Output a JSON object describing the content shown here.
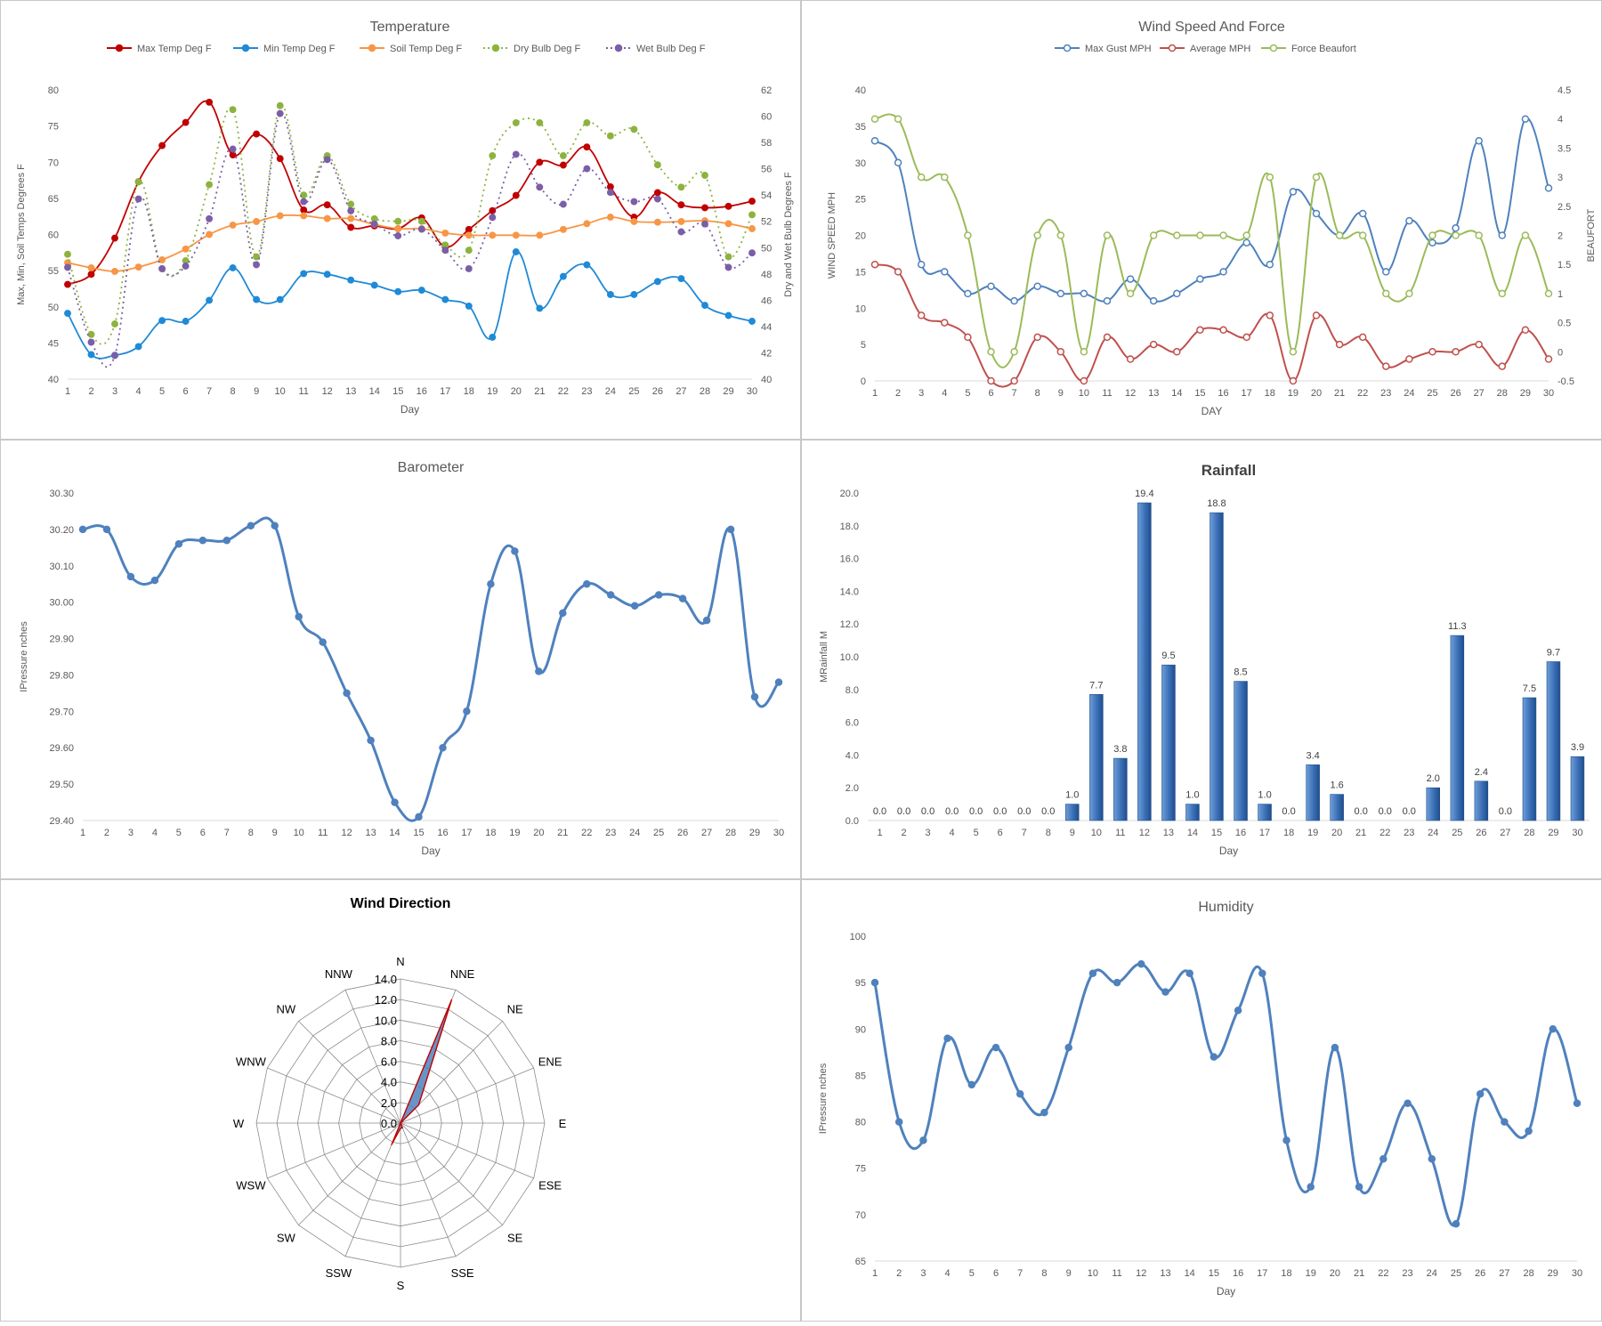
{
  "colors": {
    "max_temp": "#c00000",
    "min_temp": "#1f8ad6",
    "soil_temp": "#f79646",
    "dry_bulb": "#8db33f",
    "wet_bulb": "#7b5ea7",
    "gust": "#4f81bd",
    "average": "#c0504d",
    "beaufort": "#9bbb59",
    "line_blue": "#4f81bd",
    "bar": "#3b6fb6",
    "radar_fill": "#4f81bd",
    "radar_stroke": "#c00000",
    "grid": "#d9d9d9",
    "text": "#595959"
  },
  "chart_data": [
    {
      "id": "temperature",
      "type": "line",
      "title": "Temperature",
      "xlabel": "Day",
      "ylabel": "Max, Min, Soil Temps Degrees F",
      "y2label": "Dry and Wet Bulb Degrees F",
      "ylim": [
        40,
        80
      ],
      "yticks": [
        40,
        45,
        50,
        55,
        60,
        65,
        70,
        75,
        80
      ],
      "y2lim": [
        40,
        62
      ],
      "y2ticks": [
        40,
        42,
        44,
        46,
        48,
        50,
        52,
        54,
        56,
        58,
        60,
        62
      ],
      "x": [
        1,
        2,
        3,
        4,
        5,
        6,
        7,
        8,
        9,
        10,
        11,
        12,
        13,
        14,
        15,
        16,
        17,
        18,
        19,
        20,
        21,
        22,
        23,
        24,
        25,
        26,
        27,
        28,
        29,
        30
      ],
      "grid": false,
      "legend": "top",
      "series": [
        {
          "name": "Max Temp Deg F",
          "axis": "left",
          "style": "solid",
          "color_key": "max_temp",
          "values": [
            53.1,
            54.5,
            59.5,
            67.3,
            72.3,
            75.5,
            78.3,
            71.0,
            73.9,
            70.5,
            63.4,
            64.1,
            61.0,
            61.2,
            60.8,
            62.3,
            58.3,
            60.7,
            63.3,
            65.4,
            70.0,
            69.6,
            72.1,
            66.6,
            62.4,
            65.8,
            64.1,
            63.7,
            63.9,
            64.6
          ]
        },
        {
          "name": "Min Temp Deg F",
          "axis": "left",
          "style": "solid",
          "color_key": "min_temp",
          "values": [
            49.1,
            43.4,
            43.3,
            44.5,
            48.1,
            48.0,
            50.9,
            55.4,
            51.0,
            51.0,
            54.6,
            54.5,
            53.7,
            53.0,
            52.1,
            52.3,
            51.0,
            50.1,
            45.8,
            57.6,
            49.8,
            54.2,
            55.8,
            51.7,
            51.7,
            53.5,
            53.9,
            50.2,
            48.8,
            48.0
          ]
        },
        {
          "name": "Soil Temp Deg F",
          "axis": "left",
          "style": "solid",
          "color_key": "soil_temp",
          "values": [
            56.1,
            55.4,
            54.9,
            55.5,
            56.5,
            58.0,
            60.0,
            61.3,
            61.8,
            62.6,
            62.6,
            62.2,
            62.2,
            61.4,
            60.8,
            60.8,
            60.2,
            59.9,
            59.9,
            59.9,
            59.9,
            60.7,
            61.5,
            62.4,
            61.8,
            61.7,
            61.8,
            61.9,
            61.5,
            60.8
          ]
        },
        {
          "name": "Dry Bulb Deg F",
          "axis": "right",
          "style": "dotted",
          "color_key": "dry_bulb",
          "values": [
            49.5,
            43.4,
            44.2,
            55.0,
            48.4,
            49.0,
            54.8,
            60.5,
            49.3,
            60.8,
            54.0,
            57.0,
            53.3,
            52.2,
            52.0,
            52.0,
            50.2,
            49.8,
            57.0,
            59.5,
            59.5,
            57.0,
            59.5,
            58.5,
            59.0,
            56.3,
            54.6,
            55.5,
            49.3,
            52.5
          ]
        },
        {
          "name": "Wet Bulb Deg F",
          "axis": "right",
          "style": "dotted",
          "color_key": "wet_bulb",
          "values": [
            48.5,
            42.8,
            41.8,
            53.7,
            48.4,
            48.6,
            52.2,
            57.5,
            48.7,
            60.2,
            53.5,
            56.7,
            52.8,
            51.8,
            50.9,
            51.4,
            49.8,
            48.4,
            52.3,
            57.1,
            54.6,
            53.3,
            56.0,
            54.2,
            53.5,
            53.7,
            51.2,
            51.8,
            48.5,
            49.6
          ]
        }
      ]
    },
    {
      "id": "wind_speed",
      "type": "line",
      "title": "Wind Speed And Force",
      "xlabel": "DAY",
      "ylabel": "WIND SPEED MPH",
      "y2label": "BEAUFORT",
      "ylim": [
        0,
        40
      ],
      "yticks": [
        0,
        5,
        10,
        15,
        20,
        25,
        30,
        35,
        40
      ],
      "y2lim": [
        -0.5,
        4.5
      ],
      "y2ticks": [
        "-0.5",
        "0",
        "0.5",
        "1",
        "1.5",
        "2",
        "2.5",
        "3",
        "3.5",
        "4",
        "4.5"
      ],
      "x": [
        1,
        2,
        3,
        4,
        5,
        6,
        7,
        8,
        9,
        10,
        11,
        12,
        13,
        14,
        15,
        16,
        17,
        18,
        19,
        20,
        21,
        22,
        23,
        24,
        25,
        26,
        27,
        28,
        29,
        30
      ],
      "grid": false,
      "legend": "top",
      "series": [
        {
          "name": "Max Gust MPH",
          "axis": "left",
          "color_key": "gust",
          "values": [
            33,
            30,
            16,
            15,
            12,
            13,
            11,
            13,
            12,
            12,
            11,
            14,
            11,
            12,
            14,
            15,
            19,
            16,
            26,
            23,
            20,
            23,
            15,
            22,
            19,
            21,
            33,
            20,
            36,
            26.5
          ]
        },
        {
          "name": "Average MPH",
          "axis": "left",
          "color_key": "average",
          "values": [
            16,
            15,
            9,
            8,
            6,
            0,
            0,
            6,
            4,
            0,
            6,
            3,
            5,
            4,
            7,
            7,
            6,
            9,
            0,
            9,
            5,
            6,
            2,
            3,
            4,
            4,
            5,
            2,
            7,
            3
          ]
        },
        {
          "name": "Force Beaufort",
          "axis": "right",
          "color_key": "beaufort",
          "values": [
            4,
            4,
            3,
            3,
            2,
            0,
            0,
            2,
            2,
            0,
            2,
            1,
            2,
            2,
            2,
            2,
            2,
            3,
            0,
            3,
            2,
            2,
            1,
            1,
            2,
            2,
            2,
            1,
            2,
            1
          ]
        }
      ]
    },
    {
      "id": "barometer",
      "type": "line",
      "title": "Barometer",
      "xlabel": "Day",
      "ylabel": "IPressure nches",
      "ylim": [
        29.4,
        30.3
      ],
      "yticks": [
        "29.40",
        "29.50",
        "29.60",
        "29.70",
        "29.80",
        "29.90",
        "30.00",
        "30.10",
        "30.20",
        "30.30"
      ],
      "x": [
        1,
        2,
        3,
        4,
        5,
        6,
        7,
        8,
        9,
        10,
        11,
        12,
        13,
        14,
        15,
        16,
        17,
        18,
        19,
        20,
        21,
        22,
        23,
        24,
        25,
        26,
        27,
        28,
        29,
        30
      ],
      "grid": false,
      "series": [
        {
          "name": "",
          "color_key": "line_blue",
          "values": [
            30.2,
            30.2,
            30.07,
            30.06,
            30.16,
            30.17,
            30.17,
            30.21,
            30.21,
            29.96,
            29.89,
            29.75,
            29.62,
            29.45,
            29.41,
            29.6,
            29.7,
            30.05,
            30.14,
            29.81,
            29.97,
            30.05,
            30.02,
            29.99,
            30.02,
            30.01,
            29.95,
            30.2,
            29.74,
            29.78
          ]
        }
      ]
    },
    {
      "id": "rainfall",
      "type": "bar",
      "title": "Rainfall",
      "xlabel": "Day",
      "ylabel": "MRainfall M",
      "ylim": [
        0,
        20
      ],
      "yticks": [
        "0.0",
        "2.0",
        "4.0",
        "6.0",
        "8.0",
        "10.0",
        "12.0",
        "14.0",
        "16.0",
        "18.0",
        "20.0"
      ],
      "categories": [
        "1",
        "2",
        "3",
        "4",
        "5",
        "6",
        "7",
        "8",
        "9",
        "10",
        "11",
        "12",
        "13",
        "14",
        "15",
        "16",
        "17",
        "18",
        "19",
        "20",
        "21",
        "22",
        "23",
        "24",
        "25",
        "26",
        "27",
        "28",
        "29",
        "30"
      ],
      "values": [
        0.0,
        0.0,
        0.0,
        0.0,
        0.0,
        0.0,
        0.0,
        0.0,
        1.0,
        7.7,
        3.8,
        19.4,
        9.5,
        1.0,
        18.8,
        8.5,
        1.0,
        0.0,
        3.4,
        1.6,
        0.0,
        0.0,
        0.0,
        2.0,
        11.3,
        2.4,
        0.0,
        7.5,
        9.7,
        3.9
      ],
      "labels": [
        "0.0",
        "0.0",
        "0.0",
        "0.0",
        "0.0",
        "0.0",
        "0.0",
        "0.0",
        "1.0",
        "7.7",
        "3.8",
        "19.4",
        "9.5",
        "1.0",
        "18.8",
        "8.5",
        "1.0",
        "0.0",
        "3.4",
        "1.6",
        "0.0",
        "0.0",
        "0.0",
        "2.0",
        "11.3",
        "2.4",
        "0.0",
        "7.5",
        "9.7",
        "3.9"
      ],
      "grid": false
    },
    {
      "id": "wind_direction",
      "type": "radar",
      "title": "Wind Direction",
      "directions": [
        "N",
        "NNE",
        "NE",
        "ENE",
        "E",
        "ESE",
        "SE",
        "SSE",
        "S",
        "SSW",
        "SW",
        "WSW",
        "W",
        "WNW",
        "NW",
        "NNW"
      ],
      "values": [
        0,
        13.0,
        2.5,
        0,
        0,
        0,
        0,
        0.5,
        0.5,
        2.3,
        0,
        0,
        0,
        0,
        0,
        0
      ],
      "rlim": [
        0,
        14
      ],
      "rticks": [
        "0.0",
        "2.0",
        "4.0",
        "6.0",
        "8.0",
        "10.0",
        "12.0",
        "14.0"
      ]
    },
    {
      "id": "humidity",
      "type": "line",
      "title": "Humidity",
      "xlabel": "Day",
      "ylabel": "IPressure nches",
      "ylim": [
        65,
        100
      ],
      "yticks": [
        65,
        70,
        75,
        80,
        85,
        90,
        95,
        100
      ],
      "x": [
        1,
        2,
        3,
        4,
        5,
        6,
        7,
        8,
        9,
        10,
        11,
        12,
        13,
        14,
        15,
        16,
        17,
        18,
        19,
        20,
        21,
        22,
        23,
        24,
        25,
        26,
        27,
        28,
        29,
        30
      ],
      "grid": false,
      "series": [
        {
          "name": "",
          "color_key": "line_blue",
          "values": [
            95,
            80,
            78,
            89,
            84,
            88,
            83,
            81,
            88,
            96,
            95,
            97,
            94,
            96,
            87,
            92,
            96,
            78,
            73,
            88,
            73,
            76,
            82,
            76,
            69,
            83,
            80,
            79,
            90,
            82
          ]
        }
      ]
    }
  ]
}
